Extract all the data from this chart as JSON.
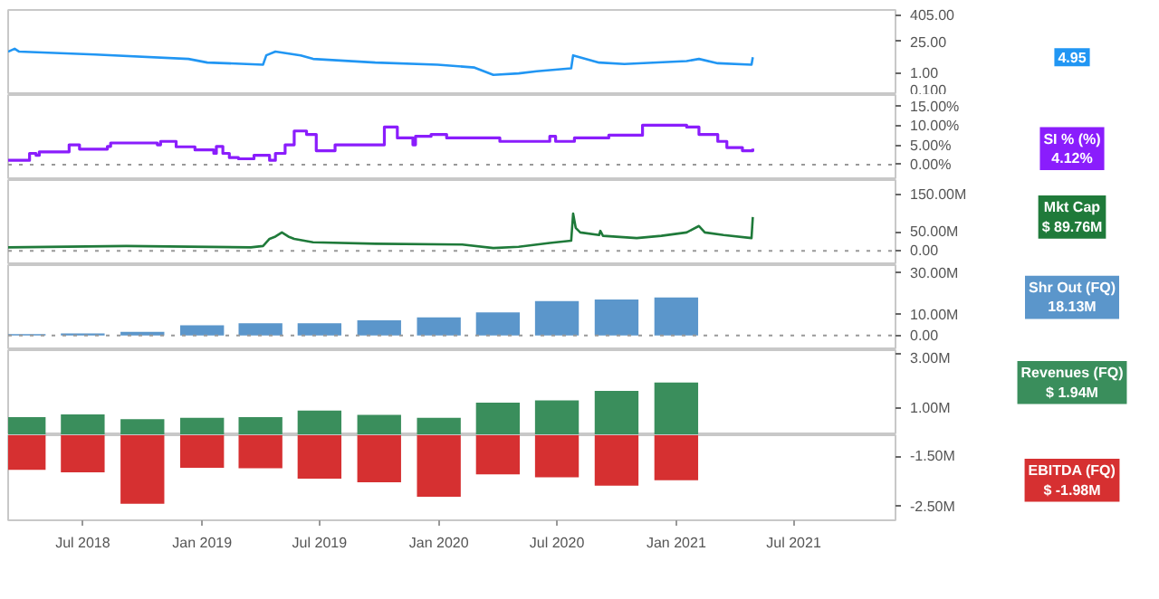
{
  "chart_data": [
    {
      "type": "line",
      "xlim": [
        "2018-03-08",
        "2021-12-05"
      ],
      "tick_labels": "y",
      "log": true,
      "ylim": [
        0.1,
        650
      ],
      "yticks": [
        {
          "value": 405,
          "label": "405.00"
        },
        {
          "value": 25,
          "label": "25.00"
        },
        {
          "value": 1,
          "label": "1.00"
        },
        {
          "value": 0.1,
          "label": "0.100"
        }
      ],
      "x": [
        "2018-03-08",
        "2018-03-18",
        "2018-03-25",
        "2018-07-20",
        "2018-12-11",
        "2019-01-09",
        "2019-04-05",
        "2019-04-10",
        "2019-04-24",
        "2019-06-02",
        "2019-06-21",
        "2019-09-25",
        "2019-12-30",
        "2020-02-25",
        "2020-03-25",
        "2020-05-03",
        "2020-05-31",
        "2020-07-23",
        "2020-07-26",
        "2020-09-04",
        "2020-10-13",
        "2021-01-17",
        "2021-02-05",
        "2021-03-06",
        "2021-04-27",
        "2021-04-29"
      ],
      "series": [
        {
          "color": "#2196f3",
          "values": [
            8.8,
            11.8,
            8.8,
            6.5,
            4.15,
            2.85,
            2.3,
            6.0,
            8.8,
            6.0,
            4.15,
            2.85,
            2.3,
            1.7,
            0.8,
            0.93,
            1.16,
            1.57,
            6.0,
            2.85,
            2.45,
            3.3,
            4.15,
            2.65,
            2.3,
            4.95
          ]
        }
      ],
      "annotations": [
        "4.95"
      ]
    },
    {
      "type": "step",
      "xlim": [
        "2018-03-08",
        "2021-12-05"
      ],
      "tick_labels": "y",
      "ylim": [
        -4,
        18
      ],
      "yticks": [
        {
          "value": 15,
          "label": "15.00%"
        },
        {
          "value": 10,
          "label": "10.00%"
        },
        {
          "value": 5,
          "label": "5.00%"
        },
        {
          "value": 0,
          "label": "0.00%"
        }
      ],
      "ref_lines": [
        {
          "axis": "y",
          "value": 0,
          "color": "#999999",
          "line_style": "dotted"
        }
      ],
      "x": [
        "2018-03-08",
        "2018-04-05",
        "2018-04-10",
        "2018-04-20",
        "2018-04-25",
        "2018-06-07",
        "2018-06-10",
        "2018-06-26",
        "2018-08-08",
        "2018-08-13",
        "2018-10-24",
        "2018-10-29",
        "2018-11-17",
        "2018-11-22",
        "2018-12-21",
        "2019-01-19",
        "2019-01-23",
        "2019-02-02",
        "2019-02-12",
        "2019-02-26",
        "2019-03-22",
        "2019-04-15",
        "2019-04-24",
        "2019-05-09",
        "2019-05-23",
        "2019-06-11",
        "2019-06-26",
        "2019-07-25",
        "2019-10-09",
        "2019-10-29",
        "2019-11-22",
        "2019-11-26",
        "2019-12-20",
        "2020-01-13",
        "2020-04-04",
        "2020-06-20",
        "2020-06-29",
        "2020-07-28",
        "2020-09-19",
        "2020-11-10",
        "2021-01-17",
        "2021-02-05",
        "2021-03-06",
        "2021-03-20",
        "2021-04-13",
        "2021-04-29"
      ],
      "series": [
        {
          "name": "SI % (%)",
          "color": "#8a1dfc",
          "values": [
            1.1,
            1.1,
            2.9,
            2.4,
            3.3,
            3.3,
            5.1,
            4.0,
            4.7,
            5.6,
            5.1,
            6.0,
            6.0,
            4.6,
            3.8,
            2.9,
            4.7,
            2.9,
            1.8,
            1.5,
            2.4,
            1.1,
            2.9,
            5.1,
            8.7,
            7.8,
            3.6,
            5.1,
            9.7,
            6.9,
            5.1,
            7.3,
            7.8,
            6.9,
            6.0,
            7.3,
            6.0,
            6.9,
            7.6,
            10.2,
            9.7,
            7.8,
            6.0,
            4.4,
            3.6,
            4.12
          ]
        }
      ],
      "annotations": [
        "4.12%"
      ]
    },
    {
      "type": "line",
      "xlim": [
        "2018-03-08",
        "2021-12-05"
      ],
      "tick_labels": "y",
      "ylim": [
        -37.5,
        187.5
      ],
      "yticks": [
        {
          "value": 150,
          "label": "150.00M"
        },
        {
          "value": 50,
          "label": "50.00M"
        },
        {
          "value": 0,
          "label": "0.00"
        }
      ],
      "ref_lines": [
        {
          "axis": "y",
          "value": 0,
          "color": "#999999",
          "line_style": "dotted"
        }
      ],
      "x": [
        "2018-03-08",
        "2018-09-06",
        "2019-03-17",
        "2019-04-05",
        "2019-04-15",
        "2019-04-24",
        "2019-05-04",
        "2019-05-14",
        "2019-05-23",
        "2019-06-21",
        "2019-09-25",
        "2020-02-06",
        "2020-03-25",
        "2020-05-03",
        "2020-06-20",
        "2020-07-23",
        "2020-07-26",
        "2020-07-30",
        "2020-08-06",
        "2020-09-04",
        "2020-09-06",
        "2020-09-10",
        "2020-11-01",
        "2020-12-09",
        "2021-01-17",
        "2021-02-05",
        "2021-02-14",
        "2021-03-15",
        "2021-04-27",
        "2021-04-29"
      ],
      "series": [
        {
          "name": "Mkt Cap",
          "color": "#1f7a3a",
          "values": [
            9.5,
            13,
            9.5,
            13,
            32,
            38,
            49,
            38,
            32,
            23,
            19,
            17,
            7.6,
            11,
            21,
            27,
            99,
            61,
            49,
            42,
            53,
            40,
            34,
            40,
            49,
            66,
            49,
            42,
            34,
            89.76
          ]
        }
      ],
      "annotations": [
        "$ 89.76M"
      ]
    },
    {
      "type": "bar",
      "xlim": [
        "2018-03-08",
        "2021-12-05"
      ],
      "tick_labels": "y",
      "ylim": [
        -7,
        33.5
      ],
      "yticks": [
        {
          "value": 30,
          "label": "30.00M"
        },
        {
          "value": 10,
          "label": "10.00M"
        },
        {
          "value": 0,
          "label": "0.00"
        }
      ],
      "ref_lines": [
        {
          "axis": "y",
          "value": 0,
          "color": "#999999",
          "line_style": "dotted"
        }
      ],
      "x": [
        "2018-04-01",
        "2018-07-01",
        "2018-10-01",
        "2019-01-01",
        "2019-04-01",
        "2019-07-01",
        "2019-10-01",
        "2020-01-01",
        "2020-04-01",
        "2020-07-01",
        "2020-10-01",
        "2021-01-01"
      ],
      "series": [
        {
          "name": "Shr Out (FQ)",
          "color": "#5b96cb",
          "values": [
            0.7,
            1.0,
            1.7,
            4.8,
            5.8,
            5.8,
            7.2,
            8.6,
            11.0,
            16.4,
            17.1,
            18.13
          ]
        }
      ],
      "annotations": [
        "18.13M"
      ]
    },
    {
      "type": "bar",
      "xlim": [
        "2018-03-08",
        "2021-12-05"
      ],
      "tick_labels": "y",
      "ylim": [
        0,
        3.13
      ],
      "yticks": [
        {
          "value": 3,
          "label": "3.00M"
        },
        {
          "value": 1,
          "label": "1.00M"
        }
      ],
      "x": [
        "2018-04-01",
        "2018-07-01",
        "2018-10-01",
        "2019-01-01",
        "2019-04-01",
        "2019-07-01",
        "2019-10-01",
        "2020-01-01",
        "2020-04-01",
        "2020-07-01",
        "2020-10-01",
        "2021-01-01"
      ],
      "series": [
        {
          "name": "Revenues (FQ)",
          "color": "#3a8e5c",
          "values": [
            0.67,
            0.77,
            0.59,
            0.64,
            0.67,
            0.91,
            0.75,
            0.64,
            1.2,
            1.28,
            1.63,
            1.94
          ]
        }
      ],
      "annotations": [
        "$ 1.94M"
      ]
    },
    {
      "type": "bar",
      "xlim": [
        "2018-03-08",
        "2021-12-05"
      ],
      "ylim": [
        -2.78,
        -1.08
      ],
      "yticks": [
        {
          "value": -1.5,
          "label": "-1.50M"
        },
        {
          "value": -2.5,
          "label": "-2.50M"
        }
      ],
      "xticks": [
        {
          "value": "2018-07-01",
          "label": "Jul 2018"
        },
        {
          "value": "2019-01-01",
          "label": "Jan 2019"
        },
        {
          "value": "2019-07-01",
          "label": "Jul 2019"
        },
        {
          "value": "2020-01-01",
          "label": "Jan 2020"
        },
        {
          "value": "2020-07-01",
          "label": "Jul 2020"
        },
        {
          "value": "2021-01-01",
          "label": "Jan 2021"
        },
        {
          "value": "2021-07-01",
          "label": "Jul 2021"
        }
      ],
      "x": [
        "2018-04-01",
        "2018-07-01",
        "2018-10-01",
        "2019-01-01",
        "2019-04-01",
        "2019-07-01",
        "2019-10-01",
        "2020-01-01",
        "2020-04-01",
        "2020-07-01",
        "2020-10-01",
        "2021-01-01"
      ],
      "series": [
        {
          "name": "EBITDA (FQ)",
          "color": "#d63031",
          "values": [
            -1.77,
            -1.82,
            -2.45,
            -1.73,
            -1.74,
            -1.95,
            -2.02,
            -2.31,
            -1.86,
            -1.92,
            -2.09,
            -1.98
          ]
        }
      ],
      "annotations": [
        "$ -1.98M"
      ]
    }
  ]
}
